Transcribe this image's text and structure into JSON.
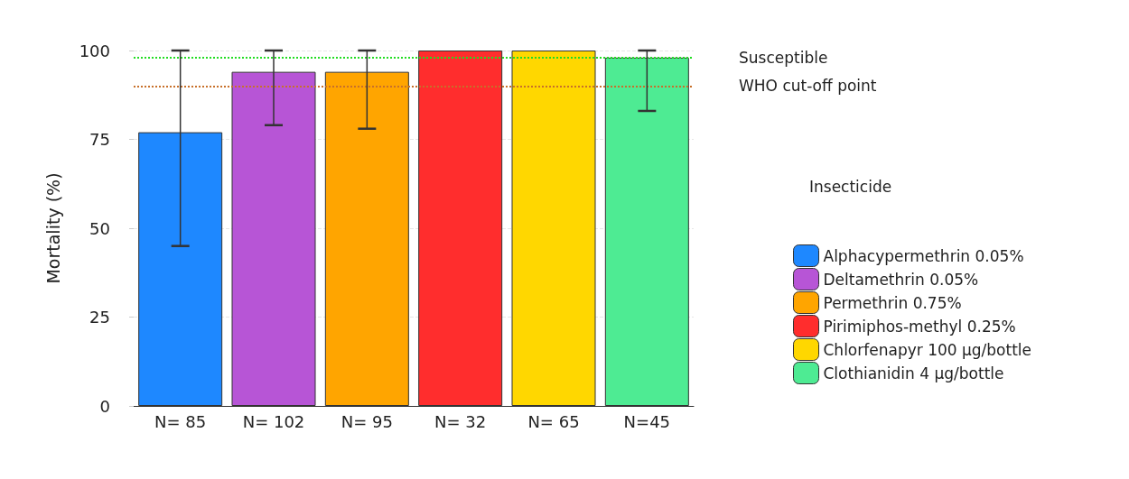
{
  "chart_data": {
    "type": "bar",
    "ylabel": "Mortality (%)",
    "legend_title": "Insecticide",
    "categories": [
      "N= 85",
      "N= 102",
      "N= 95",
      "N= 32",
      "N= 65",
      "N=45"
    ],
    "series": [
      {
        "name": "Alphacypermethrin 0.05%",
        "color": "#1e88ff",
        "values": [
          77,
          null,
          null,
          null,
          null,
          null
        ],
        "errors": [
          [
            45,
            100
          ],
          null,
          null,
          null,
          null,
          null
        ]
      },
      {
        "name": "Deltamethrin 0.05%",
        "color": "#b755d6",
        "values": [
          null,
          94,
          null,
          null,
          null,
          null
        ],
        "errors": [
          null,
          [
            79,
            100
          ],
          null,
          null,
          null,
          null
        ]
      },
      {
        "name": "Permethrin 0.75%",
        "color": "#ffa500",
        "values": [
          null,
          null,
          94,
          null,
          null,
          null
        ],
        "errors": [
          null,
          null,
          [
            78,
            100
          ],
          null,
          null,
          null
        ]
      },
      {
        "name": "Pirimiphos-methyl 0.25%",
        "color": "#ff2d2d",
        "values": [
          null,
          null,
          null,
          100,
          null,
          null
        ]
      },
      {
        "name": "Chlorfenapyr 100 µg/bottle",
        "color": "#ffd700",
        "values": [
          null,
          null,
          null,
          null,
          100,
          null
        ]
      },
      {
        "name": "Clothianidin 4 µg/bottle",
        "color": "#4eeb93",
        "values": [
          null,
          null,
          null,
          null,
          null,
          98
        ],
        "errors": [
          null,
          null,
          null,
          null,
          null,
          [
            83,
            100
          ]
        ]
      }
    ],
    "ylim": [
      0,
      100
    ],
    "yticks": [
      0,
      25,
      50,
      75,
      100
    ],
    "grid": "y",
    "legend": "right",
    "ref_lines": [
      {
        "axis": "y",
        "value": 98,
        "label": "Susceptible",
        "color": "#22dd22",
        "line_style": "dotted"
      },
      {
        "axis": "y",
        "value": 90,
        "label": "WHO cut-off point",
        "color": "#c8702a",
        "line_style": "dotted"
      }
    ]
  }
}
